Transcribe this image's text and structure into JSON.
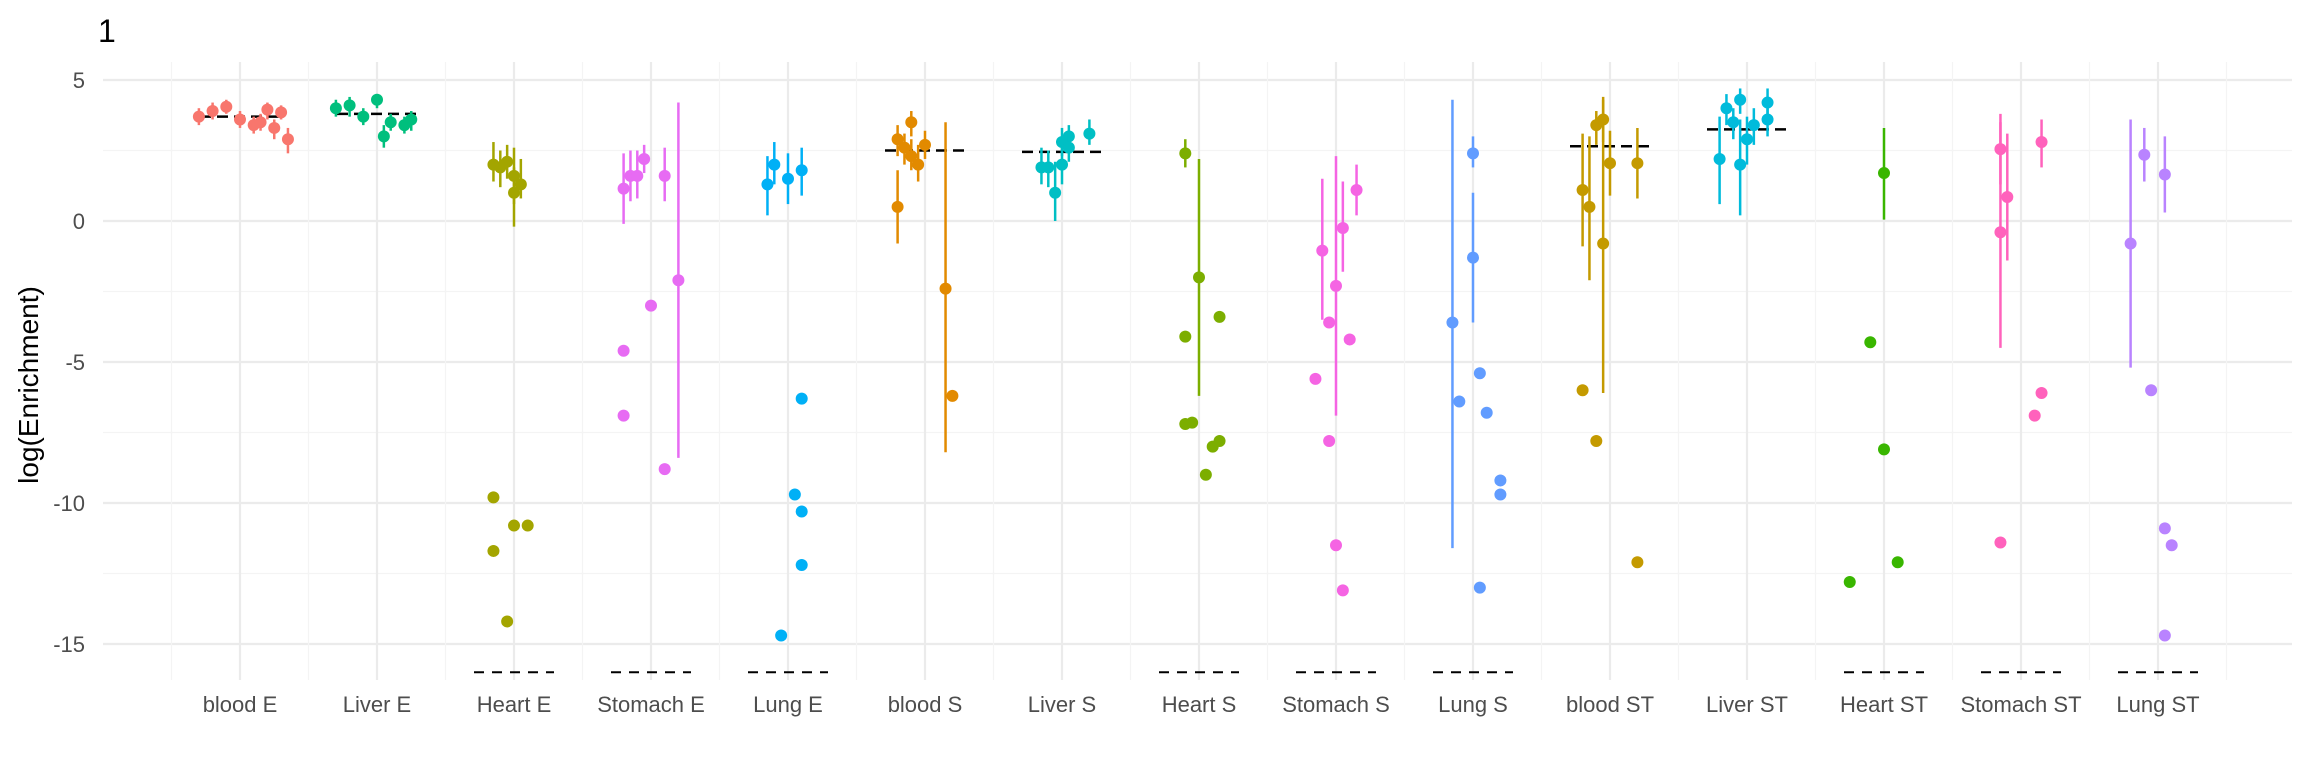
{
  "chart_data": {
    "type": "scatter",
    "title": "1",
    "xlabel": "",
    "ylabel": "log(Enrichment)",
    "ylim": [
      -16,
      6
    ],
    "y_ticks": [
      5,
      0,
      -5,
      -10,
      -15
    ],
    "grid": true,
    "legend": "none",
    "categories": [
      "blood E",
      "Liver E",
      "Heart E",
      "Stomach E",
      "Lung E",
      "blood S",
      "Liver S",
      "Heart S",
      "Stomach S",
      "Lung S",
      "blood ST",
      "Liver ST",
      "Heart ST",
      "Stomach ST",
      "Lung ST"
    ],
    "colors": [
      "#F8766D",
      "#00BF7D",
      "#A3A500",
      "#E76BF3",
      "#00B0F6",
      "#E28A00",
      "#00BFC4",
      "#7CAE00",
      "#F564E3",
      "#619CFF",
      "#C49A00",
      "#00BBDB",
      "#39B600",
      "#FF62BC",
      "#B983FF"
    ],
    "mean_lines": [
      3.7,
      3.8,
      null,
      null,
      null,
      2.5,
      2.45,
      null,
      null,
      null,
      2.65,
      3.25,
      null,
      null,
      null
    ],
    "baseline_marks": [
      false,
      false,
      true,
      true,
      true,
      false,
      false,
      true,
      true,
      true,
      false,
      false,
      true,
      true,
      true
    ],
    "baseline_value": -16,
    "series": [
      {
        "category": "blood E",
        "points": [
          {
            "x": -0.3,
            "y": 3.7,
            "lo": 3.4,
            "hi": 4.0
          },
          {
            "x": -0.2,
            "y": 3.9,
            "lo": 3.6,
            "hi": 4.2
          },
          {
            "x": -0.1,
            "y": 4.05,
            "lo": 3.8,
            "hi": 4.3
          },
          {
            "x": 0.0,
            "y": 3.6,
            "lo": 3.3,
            "hi": 3.9
          },
          {
            "x": 0.1,
            "y": 3.4,
            "lo": 3.1,
            "hi": 3.7
          },
          {
            "x": 0.2,
            "y": 3.95,
            "lo": 3.6,
            "hi": 4.2
          },
          {
            "x": 0.25,
            "y": 3.3,
            "lo": 2.9,
            "hi": 3.6
          },
          {
            "x": 0.3,
            "y": 3.85,
            "lo": 3.6,
            "hi": 4.1
          },
          {
            "x": 0.35,
            "y": 2.9,
            "lo": 2.4,
            "hi": 3.3
          },
          {
            "x": 0.15,
            "y": 3.5,
            "lo": 3.2,
            "hi": 3.8
          }
        ]
      },
      {
        "category": "Liver E",
        "points": [
          {
            "x": -0.3,
            "y": 4.0,
            "lo": 3.7,
            "hi": 4.3
          },
          {
            "x": -0.2,
            "y": 4.1,
            "lo": 3.7,
            "hi": 4.4
          },
          {
            "x": -0.1,
            "y": 3.7,
            "lo": 3.4,
            "hi": 4.0
          },
          {
            "x": 0.0,
            "y": 4.3,
            "lo": 4.0,
            "hi": 4.5
          },
          {
            "x": 0.05,
            "y": 3.0,
            "lo": 2.6,
            "hi": 3.4
          },
          {
            "x": 0.1,
            "y": 3.5,
            "lo": 3.2,
            "hi": 3.8
          },
          {
            "x": 0.2,
            "y": 3.4,
            "lo": 3.1,
            "hi": 3.7
          },
          {
            "x": 0.25,
            "y": 3.6,
            "lo": 3.2,
            "hi": 3.9
          }
        ]
      },
      {
        "category": "Heart E",
        "points": [
          {
            "x": -0.15,
            "y": 2.0,
            "lo": 1.4,
            "hi": 2.8
          },
          {
            "x": -0.1,
            "y": 1.9,
            "lo": 1.2,
            "hi": 2.5
          },
          {
            "x": 0.0,
            "y": 1.6,
            "lo": 0.6,
            "hi": 2.6
          },
          {
            "x": 0.05,
            "y": 1.3,
            "lo": 0.8,
            "hi": 2.2
          },
          {
            "x": -0.05,
            "y": 2.1,
            "lo": 1.5,
            "hi": 2.7
          },
          {
            "x": 0.0,
            "y": 1.0,
            "lo": -0.2,
            "hi": 1.9
          },
          {
            "x": -0.15,
            "y": -9.8
          },
          {
            "x": -0.15,
            "y": -11.7
          },
          {
            "x": 0.0,
            "y": -10.8
          },
          {
            "x": 0.1,
            "y": -10.8
          },
          {
            "x": -0.05,
            "y": -14.2
          }
        ]
      },
      {
        "category": "Stomach E",
        "points": [
          {
            "x": -0.2,
            "y": 1.15,
            "lo": -0.1,
            "hi": 2.4
          },
          {
            "x": -0.15,
            "y": 1.6,
            "lo": 0.7,
            "hi": 2.5
          },
          {
            "x": -0.1,
            "y": 1.6,
            "lo": 0.8,
            "hi": 2.5
          },
          {
            "x": -0.05,
            "y": 2.2,
            "lo": 1.7,
            "hi": 2.7
          },
          {
            "x": 0.1,
            "y": 1.6,
            "lo": 0.7,
            "hi": 2.6
          },
          {
            "x": 0.2,
            "y": -2.1,
            "lo": -8.4,
            "hi": 4.2
          },
          {
            "x": 0.0,
            "y": -3.0
          },
          {
            "x": -0.2,
            "y": -4.6
          },
          {
            "x": -0.2,
            "y": -6.9
          },
          {
            "x": 0.1,
            "y": -8.8
          }
        ]
      },
      {
        "category": "Lung E",
        "points": [
          {
            "x": -0.15,
            "y": 1.3,
            "lo": 0.2,
            "hi": 2.3
          },
          {
            "x": -0.1,
            "y": 2.0,
            "lo": 1.3,
            "hi": 2.8
          },
          {
            "x": 0.0,
            "y": 1.5,
            "lo": 0.6,
            "hi": 2.4
          },
          {
            "x": 0.1,
            "y": 1.8,
            "lo": 0.9,
            "hi": 2.6
          },
          {
            "x": 0.1,
            "y": -6.3
          },
          {
            "x": 0.05,
            "y": -9.7
          },
          {
            "x": 0.1,
            "y": -10.3
          },
          {
            "x": 0.1,
            "y": -12.2
          },
          {
            "x": -0.05,
            "y": -14.7
          }
        ]
      },
      {
        "category": "blood S",
        "points": [
          {
            "x": -0.2,
            "y": 2.9,
            "lo": 2.3,
            "hi": 3.4
          },
          {
            "x": -0.15,
            "y": 2.6,
            "lo": 2.0,
            "hi": 3.1
          },
          {
            "x": -0.1,
            "y": 2.3,
            "lo": 1.8,
            "hi": 2.9
          },
          {
            "x": -0.05,
            "y": 2.0,
            "lo": 1.4,
            "hi": 2.7
          },
          {
            "x": -0.1,
            "y": 3.5,
            "lo": 3.0,
            "hi": 3.9
          },
          {
            "x": 0.0,
            "y": 2.7,
            "lo": 2.2,
            "hi": 3.2
          },
          {
            "x": -0.2,
            "y": 0.5,
            "lo": -0.8,
            "hi": 1.8
          },
          {
            "x": 0.15,
            "y": -2.4,
            "lo": -8.2,
            "hi": 3.5
          },
          {
            "x": 0.2,
            "y": -6.2
          }
        ]
      },
      {
        "category": "Liver S",
        "points": [
          {
            "x": -0.15,
            "y": 1.9,
            "lo": 1.3,
            "hi": 2.6
          },
          {
            "x": -0.1,
            "y": 1.9,
            "lo": 1.2,
            "hi": 2.5
          },
          {
            "x": 0.0,
            "y": 2.8,
            "lo": 2.3,
            "hi": 3.3
          },
          {
            "x": 0.05,
            "y": 3.0,
            "lo": 2.5,
            "hi": 3.4
          },
          {
            "x": 0.0,
            "y": 2.0,
            "lo": 1.3,
            "hi": 2.7
          },
          {
            "x": -0.05,
            "y": 1.0,
            "lo": 0.0,
            "hi": 2.1
          },
          {
            "x": 0.2,
            "y": 3.1,
            "lo": 2.7,
            "hi": 3.6
          },
          {
            "x": 0.05,
            "y": 2.6,
            "lo": 2.1,
            "hi": 3.1
          }
        ]
      },
      {
        "category": "Heart S",
        "points": [
          {
            "x": -0.1,
            "y": 2.4,
            "lo": 1.9,
            "hi": 2.9
          },
          {
            "x": 0.0,
            "y": -2.0,
            "lo": -6.2,
            "hi": 2.2
          },
          {
            "x": -0.1,
            "y": -4.1
          },
          {
            "x": 0.15,
            "y": -3.4
          },
          {
            "x": -0.1,
            "y": -7.2
          },
          {
            "x": -0.05,
            "y": -7.15
          },
          {
            "x": 0.1,
            "y": -8.0
          },
          {
            "x": 0.15,
            "y": -7.8
          },
          {
            "x": 0.05,
            "y": -9.0
          }
        ]
      },
      {
        "category": "Stomach S",
        "points": [
          {
            "x": -0.1,
            "y": -1.05,
            "lo": -3.5,
            "hi": 1.5
          },
          {
            "x": 0.0,
            "y": -2.3,
            "lo": -6.9,
            "hi": 2.3
          },
          {
            "x": 0.05,
            "y": -0.25,
            "lo": -1.8,
            "hi": 1.4
          },
          {
            "x": 0.15,
            "y": 1.1,
            "lo": 0.2,
            "hi": 2.0
          },
          {
            "x": -0.15,
            "y": -5.6
          },
          {
            "x": -0.05,
            "y": -3.6
          },
          {
            "x": 0.1,
            "y": -4.2
          },
          {
            "x": -0.05,
            "y": -7.8
          },
          {
            "x": 0.0,
            "y": -11.5
          },
          {
            "x": 0.05,
            "y": -13.1
          }
        ]
      },
      {
        "category": "Lung S",
        "points": [
          {
            "x": -0.15,
            "y": -3.6,
            "lo": -11.6,
            "hi": 4.3
          },
          {
            "x": 0.0,
            "y": 2.4,
            "lo": 1.9,
            "hi": 3.0
          },
          {
            "x": 0.0,
            "y": -1.3,
            "lo": -3.6,
            "hi": 1.0
          },
          {
            "x": -0.1,
            "y": -6.4
          },
          {
            "x": 0.05,
            "y": -5.4
          },
          {
            "x": 0.1,
            "y": -6.8
          },
          {
            "x": 0.2,
            "y": -9.2
          },
          {
            "x": 0.2,
            "y": -9.7
          },
          {
            "x": 0.05,
            "y": -13.0
          }
        ]
      },
      {
        "category": "blood ST",
        "points": [
          {
            "x": -0.2,
            "y": 1.1,
            "lo": -0.9,
            "hi": 3.1
          },
          {
            "x": -0.15,
            "y": 0.5,
            "lo": -2.1,
            "hi": 3.0
          },
          {
            "x": -0.1,
            "y": 3.4,
            "lo": 2.7,
            "hi": 3.9
          },
          {
            "x": -0.05,
            "y": 3.6,
            "lo": 2.8,
            "hi": 4.3
          },
          {
            "x": 0.0,
            "y": 2.05,
            "lo": 0.9,
            "hi": 3.2
          },
          {
            "x": 0.2,
            "y": 2.05,
            "lo": 0.8,
            "hi": 3.3
          },
          {
            "x": -0.05,
            "y": -0.8,
            "lo": -6.1,
            "hi": 4.4
          },
          {
            "x": -0.2,
            "y": -6.0
          },
          {
            "x": -0.1,
            "y": -7.8
          },
          {
            "x": 0.2,
            "y": -12.1
          }
        ]
      },
      {
        "category": "Liver ST",
        "points": [
          {
            "x": -0.2,
            "y": 2.2,
            "lo": 0.6,
            "hi": 3.7
          },
          {
            "x": -0.15,
            "y": 4.0,
            "lo": 3.4,
            "hi": 4.5
          },
          {
            "x": -0.05,
            "y": 4.3,
            "lo": 3.8,
            "hi": 4.7
          },
          {
            "x": -0.05,
            "y": 2.0,
            "lo": 0.2,
            "hi": 3.6
          },
          {
            "x": 0.0,
            "y": 2.9,
            "lo": 2.0,
            "hi": 3.7
          },
          {
            "x": 0.05,
            "y": 3.4,
            "lo": 2.7,
            "hi": 4.0
          },
          {
            "x": 0.15,
            "y": 4.2,
            "lo": 3.6,
            "hi": 4.7
          },
          {
            "x": 0.15,
            "y": 3.6,
            "lo": 3.0,
            "hi": 4.1
          },
          {
            "x": -0.1,
            "y": 3.5,
            "lo": 2.9,
            "hi": 4.0
          }
        ]
      },
      {
        "category": "Heart ST",
        "points": [
          {
            "x": 0.0,
            "y": 1.7,
            "lo": 0.05,
            "hi": 3.3
          },
          {
            "x": -0.1,
            "y": -4.3
          },
          {
            "x": 0.0,
            "y": -8.1
          },
          {
            "x": -0.25,
            "y": -12.8
          },
          {
            "x": 0.1,
            "y": -12.1
          }
        ]
      },
      {
        "category": "Stomach ST",
        "points": [
          {
            "x": -0.15,
            "y": 2.55,
            "lo": 1.3,
            "hi": 3.8
          },
          {
            "x": -0.15,
            "y": -0.4,
            "lo": -4.5,
            "hi": 3.5
          },
          {
            "x": -0.1,
            "y": 0.85,
            "lo": -1.4,
            "hi": 3.1
          },
          {
            "x": 0.15,
            "y": 2.8,
            "lo": 1.9,
            "hi": 3.6
          },
          {
            "x": 0.15,
            "y": -6.1
          },
          {
            "x": 0.1,
            "y": -6.9
          },
          {
            "x": -0.15,
            "y": -11.4
          }
        ]
      },
      {
        "category": "Lung ST",
        "points": [
          {
            "x": -0.2,
            "y": -0.8,
            "lo": -5.2,
            "hi": 3.6
          },
          {
            "x": -0.1,
            "y": 2.35,
            "lo": 1.4,
            "hi": 3.3
          },
          {
            "x": 0.05,
            "y": 1.65,
            "lo": 0.3,
            "hi": 3.0
          },
          {
            "x": -0.05,
            "y": -6.0
          },
          {
            "x": 0.05,
            "y": -10.9
          },
          {
            "x": 0.1,
            "y": -11.5
          },
          {
            "x": 0.05,
            "y": -14.7
          }
        ]
      }
    ]
  }
}
